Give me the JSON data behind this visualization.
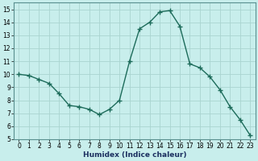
{
  "x": [
    0,
    1,
    2,
    3,
    4,
    5,
    6,
    7,
    8,
    9,
    10,
    11,
    12,
    13,
    14,
    15,
    16,
    17,
    18,
    19,
    20,
    21,
    22,
    23
  ],
  "y": [
    10.0,
    9.9,
    9.6,
    9.3,
    8.5,
    7.6,
    7.5,
    7.3,
    6.9,
    7.3,
    8.0,
    11.0,
    13.5,
    14.0,
    14.8,
    14.9,
    13.7,
    10.8,
    10.5,
    9.8,
    8.8,
    7.5,
    6.5,
    5.3
  ],
  "line_color": "#1c6b5a",
  "marker": "+",
  "marker_size": 4,
  "bg_color": "#c8eeec",
  "grid_color": "#aad4d0",
  "xlabel": "Humidex (Indice chaleur)",
  "xlim": [
    -0.5,
    23.5
  ],
  "ylim": [
    5,
    15.5
  ],
  "yticks": [
    5,
    6,
    7,
    8,
    9,
    10,
    11,
    12,
    13,
    14,
    15
  ],
  "xticks": [
    0,
    1,
    2,
    3,
    4,
    5,
    6,
    7,
    8,
    9,
    10,
    11,
    12,
    13,
    14,
    15,
    16,
    17,
    18,
    19,
    20,
    21,
    22,
    23
  ],
  "tick_fontsize": 5.5,
  "xlabel_fontsize": 6.5,
  "xlabel_color": "#1c3060",
  "linewidth": 1.0,
  "spine_color": "#5a9090"
}
